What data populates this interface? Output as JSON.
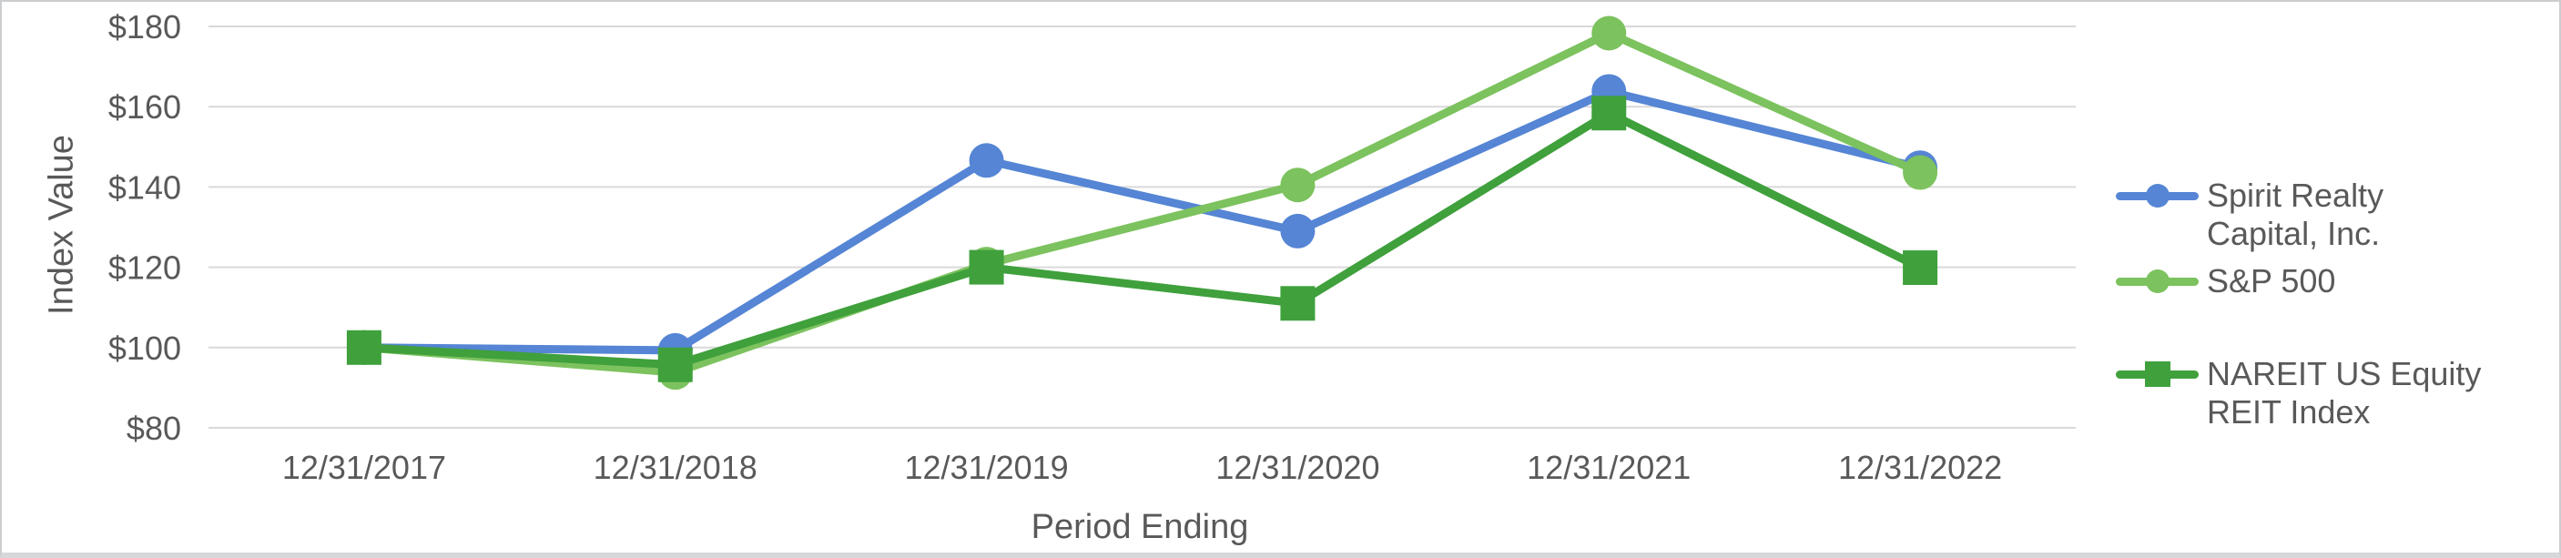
{
  "colors": {
    "text": "#595959",
    "gridline": "#d9d9d9",
    "background": "#ffffff",
    "frame_border": "#cbced0"
  },
  "chart_data": {
    "type": "line",
    "title": "",
    "xlabel": "Period Ending",
    "ylabel": "Index Value",
    "ylim": [
      80,
      180
    ],
    "grid": "horizontal-only",
    "legend_position": "right",
    "x_categories": [
      "12/31/2017",
      "12/31/2018",
      "12/31/2019",
      "12/31/2020",
      "12/31/2021",
      "12/31/2022"
    ],
    "y_ticks": [
      {
        "value": 180,
        "label": "$180"
      },
      {
        "value": 160,
        "label": "$160"
      },
      {
        "value": 140,
        "label": "$140"
      },
      {
        "value": 120,
        "label": "$120"
      },
      {
        "value": 100,
        "label": "$100"
      },
      {
        "value": 80,
        "label": "$80"
      }
    ],
    "series": [
      {
        "name": "Spirit Realty Capital, Inc.",
        "color": "#5585d4",
        "marker": "circle",
        "values": [
          100,
          99.3,
          146.6,
          129.0,
          163.8,
          144.8
        ]
      },
      {
        "name": "S&P 500",
        "color": "#7cc25e",
        "marker": "circle",
        "values": [
          100,
          93.8,
          120.8,
          140.5,
          178.3,
          143.6
        ]
      },
      {
        "name": "NAREIT US Equity REIT Index",
        "color": "#3fa03c",
        "marker": "square",
        "values": [
          100,
          95.7,
          120.0,
          111.0,
          158.4,
          119.9
        ]
      }
    ],
    "legend": [
      {
        "lines": [
          "Spirit Realty",
          "Capital, Inc."
        ],
        "marker": "circle"
      },
      {
        "lines": [
          "S&P 500"
        ],
        "marker": "circle"
      },
      {
        "lines": [
          "NAREIT US Equity",
          "REIT Index"
        ],
        "marker": "square"
      }
    ]
  }
}
